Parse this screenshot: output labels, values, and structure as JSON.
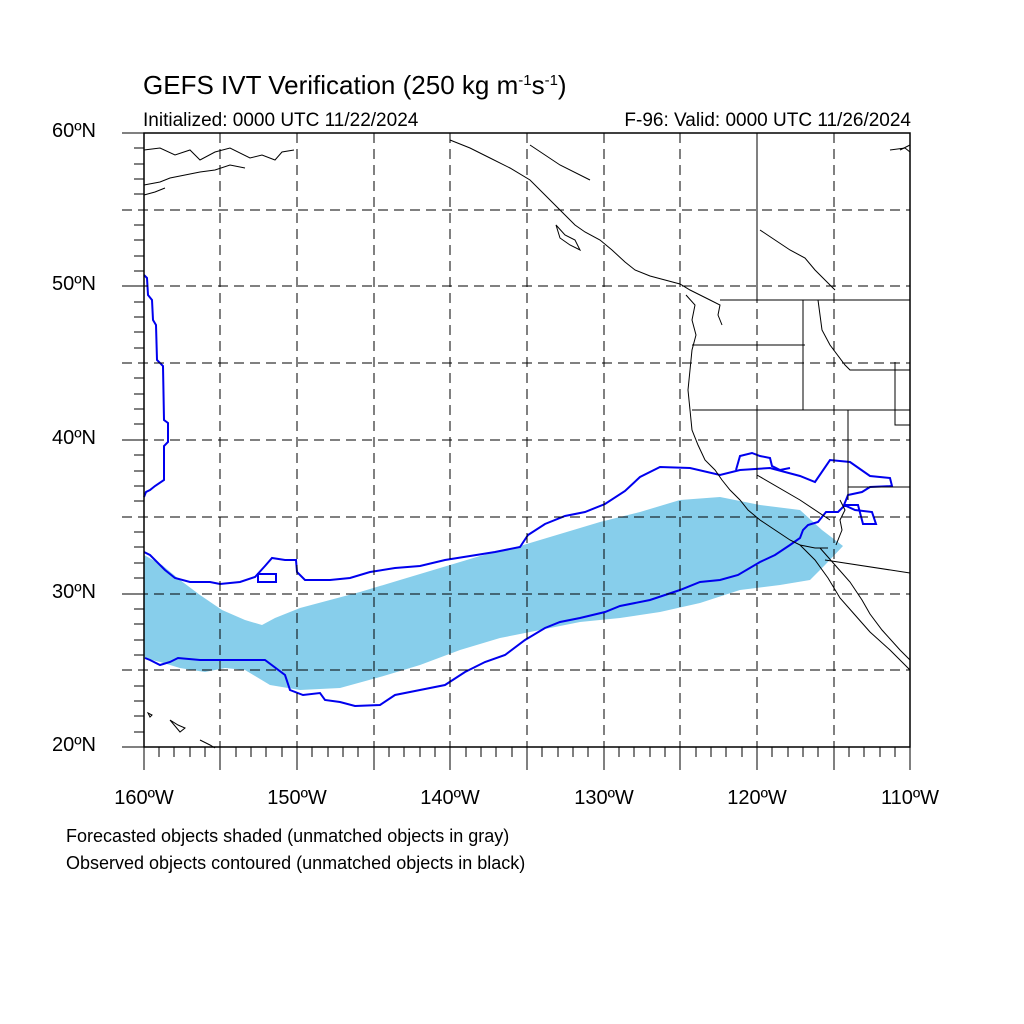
{
  "title": {
    "prefix": "GEFS IVT Verification (250 kg m",
    "exp1": "-1",
    "mid": "s",
    "exp2": "-1",
    "suffix": ")"
  },
  "initialized": "Initialized: 0000 UTC 11/22/2024",
  "valid": "F-96: Valid: 0000 UTC 11/26/2024",
  "lat_ticks": [
    "20ºN",
    "30ºN",
    "40ºN",
    "50ºN",
    "60ºN"
  ],
  "lon_ticks": [
    "160ºW",
    "150ºW",
    "140ºW",
    "130ºW",
    "120ºW",
    "110ºW"
  ],
  "footnotes": [
    "Forecasted objects shaded (unmatched objects in gray)",
    "Observed objects contoured (unmatched objects in black)"
  ],
  "colors": {
    "forecast_fill": "#87ceeb",
    "observed_contour": "#0000ee",
    "coastline": "#000000",
    "gridline": "#000000"
  }
}
